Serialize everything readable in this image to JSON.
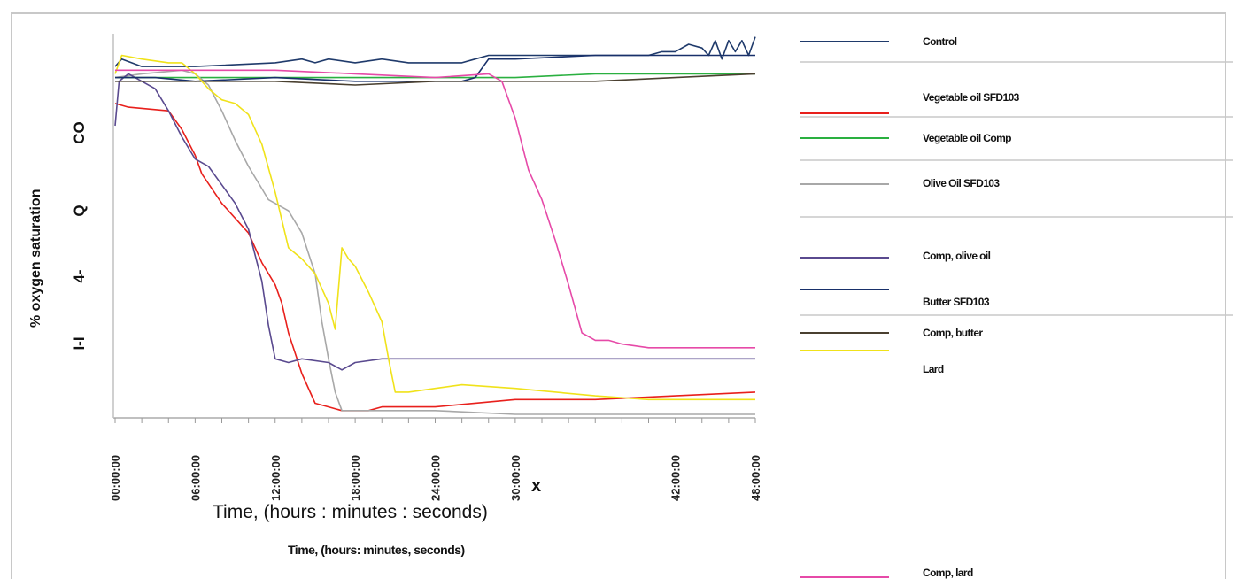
{
  "chart_data": {
    "type": "line",
    "ylabel": "% oxygen saturation",
    "ytick_glyphs": [
      "CO",
      "Q",
      "4-",
      "I-I"
    ],
    "xtick_labels": [
      "00:00:00",
      "06:00:00",
      "12:00:00",
      "18:00:00",
      "24:00:00",
      "30:00:00",
      "",
      "42:00:00",
      "48:00:00"
    ],
    "xmark": "x",
    "xlabel_overlay": "Time, (hours : minutes : seconds)",
    "xlabel": "Time, (hours: minutes, seconds)",
    "xlim": [
      0,
      48
    ],
    "ylim": [
      0,
      100
    ],
    "grid": false,
    "legend_position": "right",
    "series": [
      {
        "name": "Control",
        "color": "#1f3a6b",
        "x": [
          0,
          0.5,
          2,
          6,
          12,
          14,
          15,
          16,
          18,
          20,
          22,
          24,
          26,
          27,
          28,
          30,
          32,
          36,
          40,
          41,
          42,
          43,
          44,
          44.5,
          45,
          45.5,
          46,
          46.5,
          47,
          47.5,
          48
        ],
        "y": [
          94,
          96,
          94,
          94,
          95,
          96,
          95,
          96,
          95,
          96,
          95,
          95,
          95,
          96,
          97,
          97,
          97,
          97,
          97,
          98,
          98,
          100,
          99,
          97,
          101,
          96,
          101,
          98,
          101,
          97,
          102
        ]
      },
      {
        "name": "Vegetable oil SFD103",
        "color": "#e8201c",
        "x": [
          0,
          1,
          4,
          5,
          6,
          6.5,
          8,
          10,
          11,
          12,
          12.5,
          13,
          14,
          15,
          16,
          17,
          18,
          19,
          20,
          22,
          24,
          30,
          36,
          42,
          48
        ],
        "y": [
          84,
          83,
          82,
          77,
          70,
          65,
          57,
          49,
          41,
          35,
          30,
          22,
          11,
          3,
          2,
          1,
          1,
          1,
          2,
          2,
          2,
          4,
          4,
          5,
          6
        ]
      },
      {
        "name": "Vegetable oil Comp",
        "color": "#2ab040",
        "x": [
          0,
          6,
          12,
          18,
          24,
          30,
          36,
          42,
          48
        ],
        "y": [
          91,
          91,
          91,
          91,
          91,
          91,
          92,
          92,
          92
        ]
      },
      {
        "name": "Olive Oil SFD103",
        "color": "#a8a8a8",
        "x": [
          0,
          2,
          5,
          6,
          7,
          8,
          9,
          10,
          11,
          11.5,
          12,
          13,
          14,
          15,
          15.5,
          16,
          16.5,
          17,
          17.5,
          18,
          20,
          24,
          30,
          36,
          42,
          48
        ],
        "y": [
          91,
          92,
          93,
          92,
          89,
          82,
          74,
          67,
          61,
          58,
          57,
          55,
          49,
          38,
          25,
          15,
          6,
          1,
          1,
          1,
          1,
          1,
          0,
          0,
          0,
          0
        ]
      },
      {
        "name": "Comp, olive oil",
        "color": "#5a4a8f",
        "x": [
          0,
          0.3,
          1,
          3,
          4,
          5,
          6,
          7,
          8,
          9,
          10,
          11,
          11.5,
          12,
          13,
          14,
          16,
          17,
          18,
          20,
          24,
          30,
          36,
          42,
          48
        ],
        "y": [
          78,
          90,
          92,
          88,
          82,
          75,
          69,
          67,
          62,
          57,
          50,
          36,
          24,
          15,
          14,
          15,
          14,
          12,
          14,
          15,
          15,
          15,
          15,
          15,
          15
        ]
      },
      {
        "name": "Butter SFD103",
        "color": "#18306a",
        "x": [
          0,
          3,
          6,
          12,
          18,
          24,
          26,
          27,
          28,
          30,
          36,
          42,
          48
        ],
        "y": [
          91,
          91,
          90,
          91,
          90,
          90,
          90,
          91,
          96,
          96,
          97,
          97,
          97
        ]
      },
      {
        "name": "Comp, butter",
        "color": "#4a4030",
        "x": [
          0,
          6,
          12,
          18,
          24,
          30,
          36,
          42,
          48
        ],
        "y": [
          90,
          90,
          90,
          89,
          90,
          90,
          90,
          91,
          92
        ]
      },
      {
        "name": "Lard",
        "color": "#f0e21a",
        "x": [
          0,
          0.5,
          2,
          4,
          5,
          6,
          7,
          8,
          9,
          10,
          11,
          12,
          13,
          14,
          15,
          16,
          16.5,
          17,
          17.5,
          18,
          19,
          20,
          20.5,
          21,
          22,
          24,
          26,
          30,
          36,
          40,
          42,
          48
        ],
        "y": [
          92,
          97,
          96,
          95,
          95,
          92,
          88,
          85,
          84,
          81,
          73,
          60,
          45,
          42,
          38,
          30,
          23,
          45,
          42,
          40,
          33,
          25,
          15,
          6,
          6,
          7,
          8,
          7,
          5,
          4,
          4,
          4
        ]
      },
      {
        "name": "Comp, lard",
        "color": "#e64aa8",
        "x": [
          0,
          6,
          12,
          18,
          24,
          28,
          29,
          30,
          31,
          32,
          33,
          34,
          35,
          36,
          37,
          38,
          40,
          44,
          48
        ],
        "y": [
          93,
          93,
          93,
          92,
          91,
          92,
          90,
          80,
          66,
          58,
          47,
          35,
          22,
          20,
          20,
          19,
          18,
          18,
          18
        ]
      }
    ]
  }
}
